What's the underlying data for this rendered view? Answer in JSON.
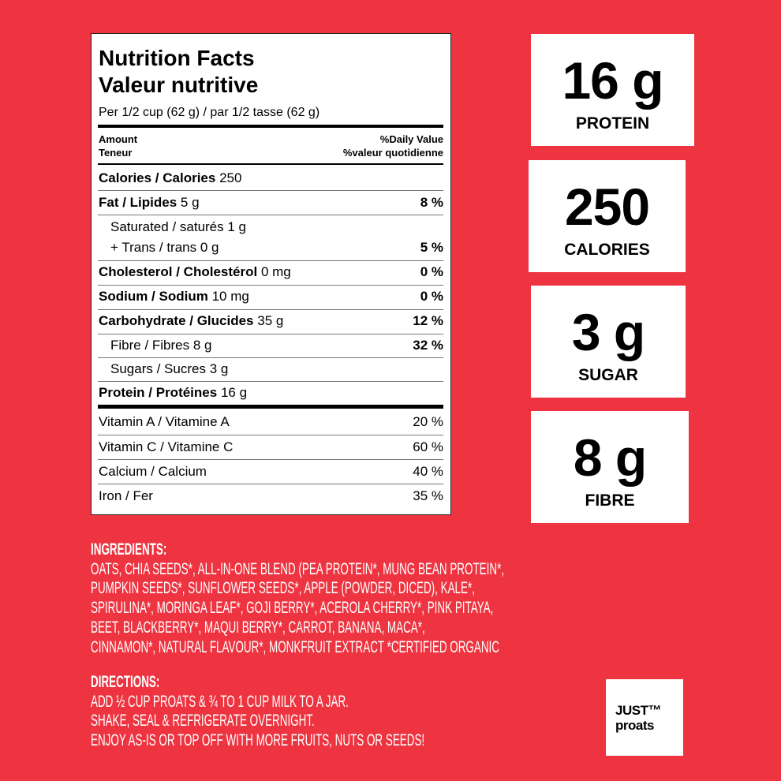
{
  "nutrition_facts": {
    "title": "Nutrition Facts",
    "title_fr": "Valeur nutritive",
    "serving": "Per 1/2 cup (62 g) / par 1/2 tasse (62 g)",
    "amount_header": [
      "Amount",
      "Teneur"
    ],
    "dv_header": [
      "%Daily Value",
      "%valeur quotidienne"
    ],
    "rows": [
      {
        "label": "Calories / Calories",
        "amount": "250"
      },
      {
        "label": "Fat / Lipides",
        "amount": "5 g",
        "dv": "8 %"
      },
      {
        "label": "Saturated / saturés",
        "amount": "1 g"
      },
      {
        "label": "+ Trans / trans",
        "amount": "0 g",
        "dv": "5 %"
      },
      {
        "label": "Cholesterol / Cholestérol",
        "amount": "0 mg",
        "dv": "0 %"
      },
      {
        "label": "Sodium / Sodium",
        "amount": "10 mg",
        "dv": "0 %"
      },
      {
        "label": "Carbohydrate / Glucides",
        "amount": "35 g",
        "dv": "12 %"
      },
      {
        "label": "Fibre / Fibres",
        "amount": "8 g",
        "dv": "32 %"
      },
      {
        "label": "Sugars / Sucres",
        "amount": "3 g"
      },
      {
        "label": "Protein / Protéines",
        "amount": "16 g"
      }
    ],
    "vitamins": [
      {
        "label": "Vitamin A / Vitamine A",
        "dv": "20 %"
      },
      {
        "label": "Vitamin C / Vitamine C",
        "dv": "60 %"
      },
      {
        "label": "Calcium / Calcium",
        "dv": "40 %"
      },
      {
        "label": "Iron / Fer",
        "dv": "35 %"
      }
    ]
  },
  "highlights": [
    {
      "value": "16 g",
      "label": "PROTEIN"
    },
    {
      "value": "250",
      "label": "CALORIES"
    },
    {
      "value": "3 g",
      "label": "SUGAR"
    },
    {
      "value": "8 g",
      "label": "FIBRE"
    }
  ],
  "ingredients": {
    "heading": "INGREDIENTS:",
    "lines": [
      "OATS, CHIA SEEDS*, ALL-IN-ONE BLEND (PEA PROTEIN*, MUNG BEAN PROTEIN*,",
      "PUMPKIN SEEDS*, SUNFLOWER SEEDS*, APPLE (POWDER, DICED), KALE*,",
      "SPIRULINA*, MORINGA LEAF*, GOJI BERRY*, ACEROLA CHERRY*, PINK PITAYA,",
      "BEET, BLACKBERRY*, MAQUI BERRY*, CARROT, BANANA, MACA*,",
      "CINNAMON*, NATURAL FLAVOUR*, MONKFRUIT EXTRACT *CERTIFIED ORGANIC"
    ]
  },
  "directions": {
    "heading": "DIRECTIONS:",
    "lines": [
      "ADD ½ CUP PROATS & ¾ TO 1 CUP MILK TO A JAR.",
      "SHAKE, SEAL & REFRIGERATE OVERNIGHT.",
      "ENJOY AS-IS OR TOP OFF WITH MORE FRUITS, NUTS OR SEEDS!"
    ]
  },
  "logo": {
    "line1": "JUST™",
    "line2": "proats"
  }
}
